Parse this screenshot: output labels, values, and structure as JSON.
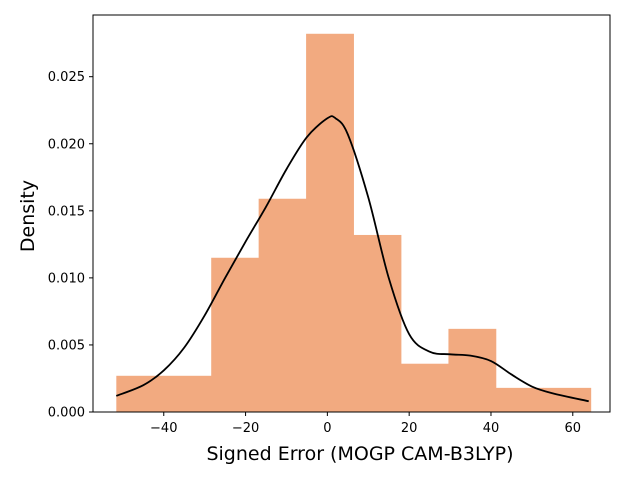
{
  "chart_data": {
    "type": "bar",
    "xlabel": "Signed Error (MOGP CAM-B3LYP)",
    "ylabel": "Density",
    "xlim": [
      -57.3,
      69.1
    ],
    "ylim": [
      0,
      0.0296
    ],
    "xticks": [
      -40,
      -20,
      0,
      20,
      40,
      60
    ],
    "xtick_labels": [
      "−40",
      "−20",
      "0",
      "20",
      "40",
      "60"
    ],
    "yticks": [
      0.0,
      0.005,
      0.01,
      0.015,
      0.02,
      0.025
    ],
    "ytick_labels": [
      "0.000",
      "0.005",
      "0.010",
      "0.015",
      "0.020",
      "0.025"
    ],
    "grid": false,
    "histogram": {
      "bin_edges": [
        -51.6,
        -40.0,
        -28.4,
        -16.8,
        -5.2,
        6.4,
        18.0,
        29.6,
        41.2,
        52.8,
        64.4
      ],
      "densities": [
        0.0027,
        0.0027,
        0.0115,
        0.0159,
        0.0282,
        0.0132,
        0.0036,
        0.0062,
        0.0018,
        0.0018
      ],
      "color": "#f2aa80"
    },
    "kde": {
      "color": "#000000",
      "x": [
        -51.6,
        -45,
        -40,
        -35,
        -30,
        -25,
        -20,
        -15,
        -10,
        -5,
        0,
        2,
        5,
        10,
        15,
        20,
        25,
        30,
        35,
        40,
        45,
        50,
        55,
        63.9
      ],
      "y": [
        0.0012,
        0.002,
        0.0031,
        0.0048,
        0.0072,
        0.01,
        0.0127,
        0.0153,
        0.0181,
        0.0205,
        0.0219,
        0.0219,
        0.0207,
        0.016,
        0.01,
        0.0058,
        0.0045,
        0.0043,
        0.0042,
        0.0038,
        0.0028,
        0.0019,
        0.0014,
        0.0008
      ]
    }
  }
}
